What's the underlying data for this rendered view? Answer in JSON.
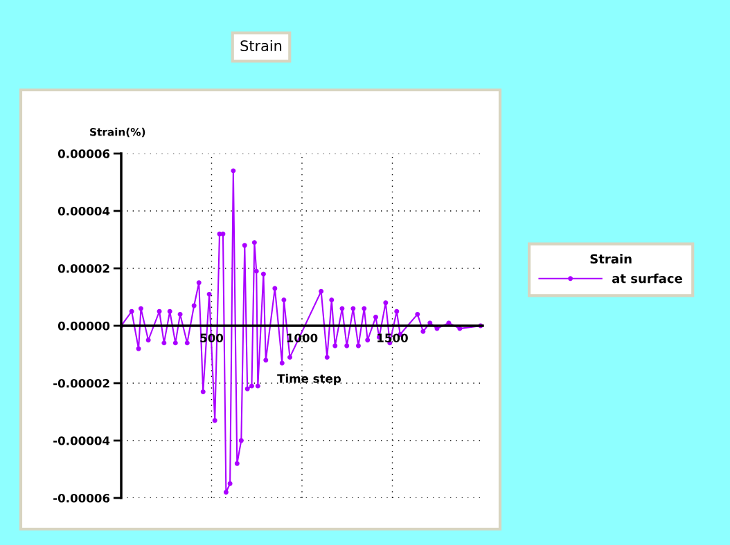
{
  "chart_data": {
    "type": "line",
    "title": "Strain",
    "ylabel": "Strain(%)",
    "xlabel": "Time step",
    "legend_title": "Strain",
    "x": [
      0,
      58,
      96,
      109,
      150,
      211,
      237,
      269,
      300,
      326,
      365,
      403,
      430,
      453,
      487,
      518,
      544,
      563,
      580,
      602,
      620,
      641,
      664,
      683,
      698,
      722,
      737,
      748,
      756,
      787,
      800,
      850,
      890,
      900,
      933,
      1106,
      1139,
      1164,
      1183,
      1222,
      1248,
      1283,
      1312,
      1344,
      1363,
      1408,
      1427,
      1463,
      1486,
      1524,
      1543,
      1639,
      1670,
      1708,
      1747,
      1812,
      1873,
      1988
    ],
    "series": [
      {
        "name": "at surface",
        "color": "#aa00ff",
        "values": [
          0,
          5e-06,
          -8e-06,
          6e-06,
          -5e-06,
          5e-06,
          -6e-06,
          5e-06,
          -6e-06,
          4e-06,
          -6e-06,
          7e-06,
          1.5e-05,
          -2.3e-05,
          1.1e-05,
          -3.3e-05,
          3.2e-05,
          3.2e-05,
          -5.8e-05,
          -5.5e-05,
          5.4e-05,
          -4.8e-05,
          -4e-05,
          2.8e-05,
          -2.2e-05,
          -2.1e-05,
          2.9e-05,
          1.9e-05,
          -2.1e-05,
          1.8e-05,
          -1.2e-05,
          1.3e-05,
          -1.3e-05,
          9e-06,
          -1.1e-05,
          1.2e-05,
          -1.1e-05,
          9e-06,
          -7e-06,
          6e-06,
          -7e-06,
          6e-06,
          -7e-06,
          6e-06,
          -5e-06,
          3e-06,
          -4e-06,
          8e-06,
          -6e-06,
          5e-06,
          -3e-06,
          4e-06,
          -2e-06,
          1e-06,
          -1e-06,
          1e-06,
          -1e-06,
          0
        ]
      }
    ],
    "xlim": [
      0,
      2000
    ],
    "ylim": [
      -6e-05,
      6e-05
    ],
    "xticks": [
      500,
      1000,
      1500
    ],
    "yticks": [
      {
        "value": -6e-05,
        "label": "-0.00006"
      },
      {
        "value": -4e-05,
        "label": "-0.00004"
      },
      {
        "value": -2e-05,
        "label": "-0.00002"
      },
      {
        "value": 0,
        "label": "0.00000"
      },
      {
        "value": 2e-05,
        "label": "0.00002"
      },
      {
        "value": 4e-05,
        "label": "0.00004"
      },
      {
        "value": 6e-05,
        "label": "0.00006"
      }
    ],
    "grid": true,
    "legend": "right",
    "marker": "circle",
    "line_style": "solid"
  }
}
